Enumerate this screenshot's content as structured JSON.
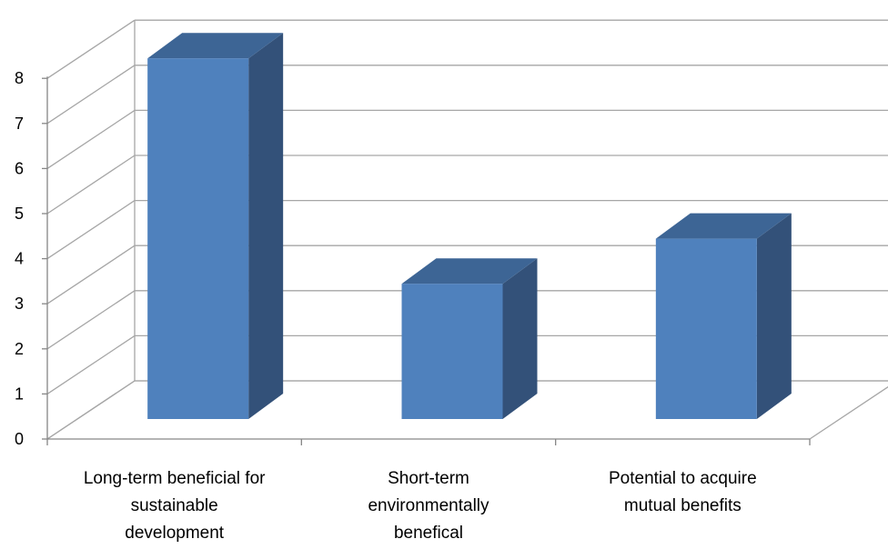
{
  "chart_data": {
    "type": "bar",
    "style": "3d-column",
    "categories": [
      [
        "Long-term beneficial for",
        "sustainable",
        "development"
      ],
      [
        "Short-term",
        "environmentally",
        "benefical"
      ],
      [
        "Potential to acquire",
        "mutual benefits"
      ]
    ],
    "values": [
      8,
      3,
      4
    ],
    "ylim": [
      0,
      8
    ],
    "yticks": [
      "0",
      "1",
      "2",
      "3",
      "4",
      "5",
      "6",
      "7",
      "8"
    ],
    "grid": true,
    "legend": "none",
    "colors": {
      "bar_front": "#4F81BD",
      "bar_top": "#3D6595",
      "bar_side": "#335179",
      "grid": "#A6A6A6",
      "axis": "#868686"
    }
  }
}
